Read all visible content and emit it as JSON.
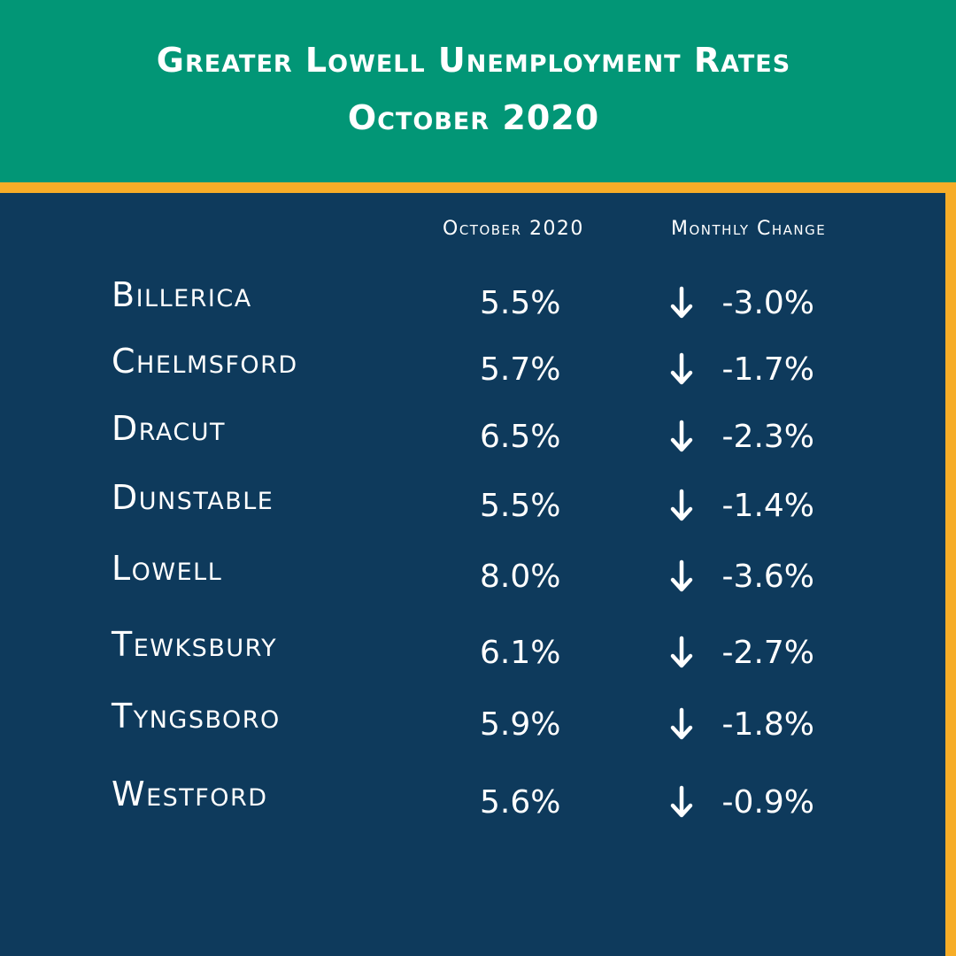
{
  "header": {
    "title_line1": "Greater Lowell Unemployment Rates",
    "title_line2": "October 2020"
  },
  "colors": {
    "header_bg": "#029676",
    "body_bg": "#0e3a5c",
    "accent_border": "#f6ad28",
    "text": "#ffffff"
  },
  "columns": {
    "rate_label": "October 2020",
    "change_label": "Monthly Change"
  },
  "chart_data": {
    "type": "table",
    "title": "Greater Lowell Unemployment Rates October 2020",
    "columns": [
      "",
      "October 2020",
      "Monthly Change"
    ],
    "change_icon": "down-arrow-icon",
    "rows": [
      {
        "town": "Billerica",
        "rate": "5.5%",
        "change": "-3.0%"
      },
      {
        "town": "Chelmsford",
        "rate": "5.7%",
        "change": "-1.7%"
      },
      {
        "town": "Dracut",
        "rate": "6.5%",
        "change": "-2.3%"
      },
      {
        "town": "Dunstable",
        "rate": "5.5%",
        "change": "-1.4%"
      },
      {
        "town": "Lowell",
        "rate": "8.0%",
        "change": "-3.6%"
      },
      {
        "town": "Tewksbury",
        "rate": "6.1%",
        "change": "-2.7%"
      },
      {
        "town": "Tyngsboro",
        "rate": "5.9%",
        "change": "-1.8%"
      },
      {
        "town": "Westford",
        "rate": "5.6%",
        "change": "-0.9%"
      }
    ]
  }
}
